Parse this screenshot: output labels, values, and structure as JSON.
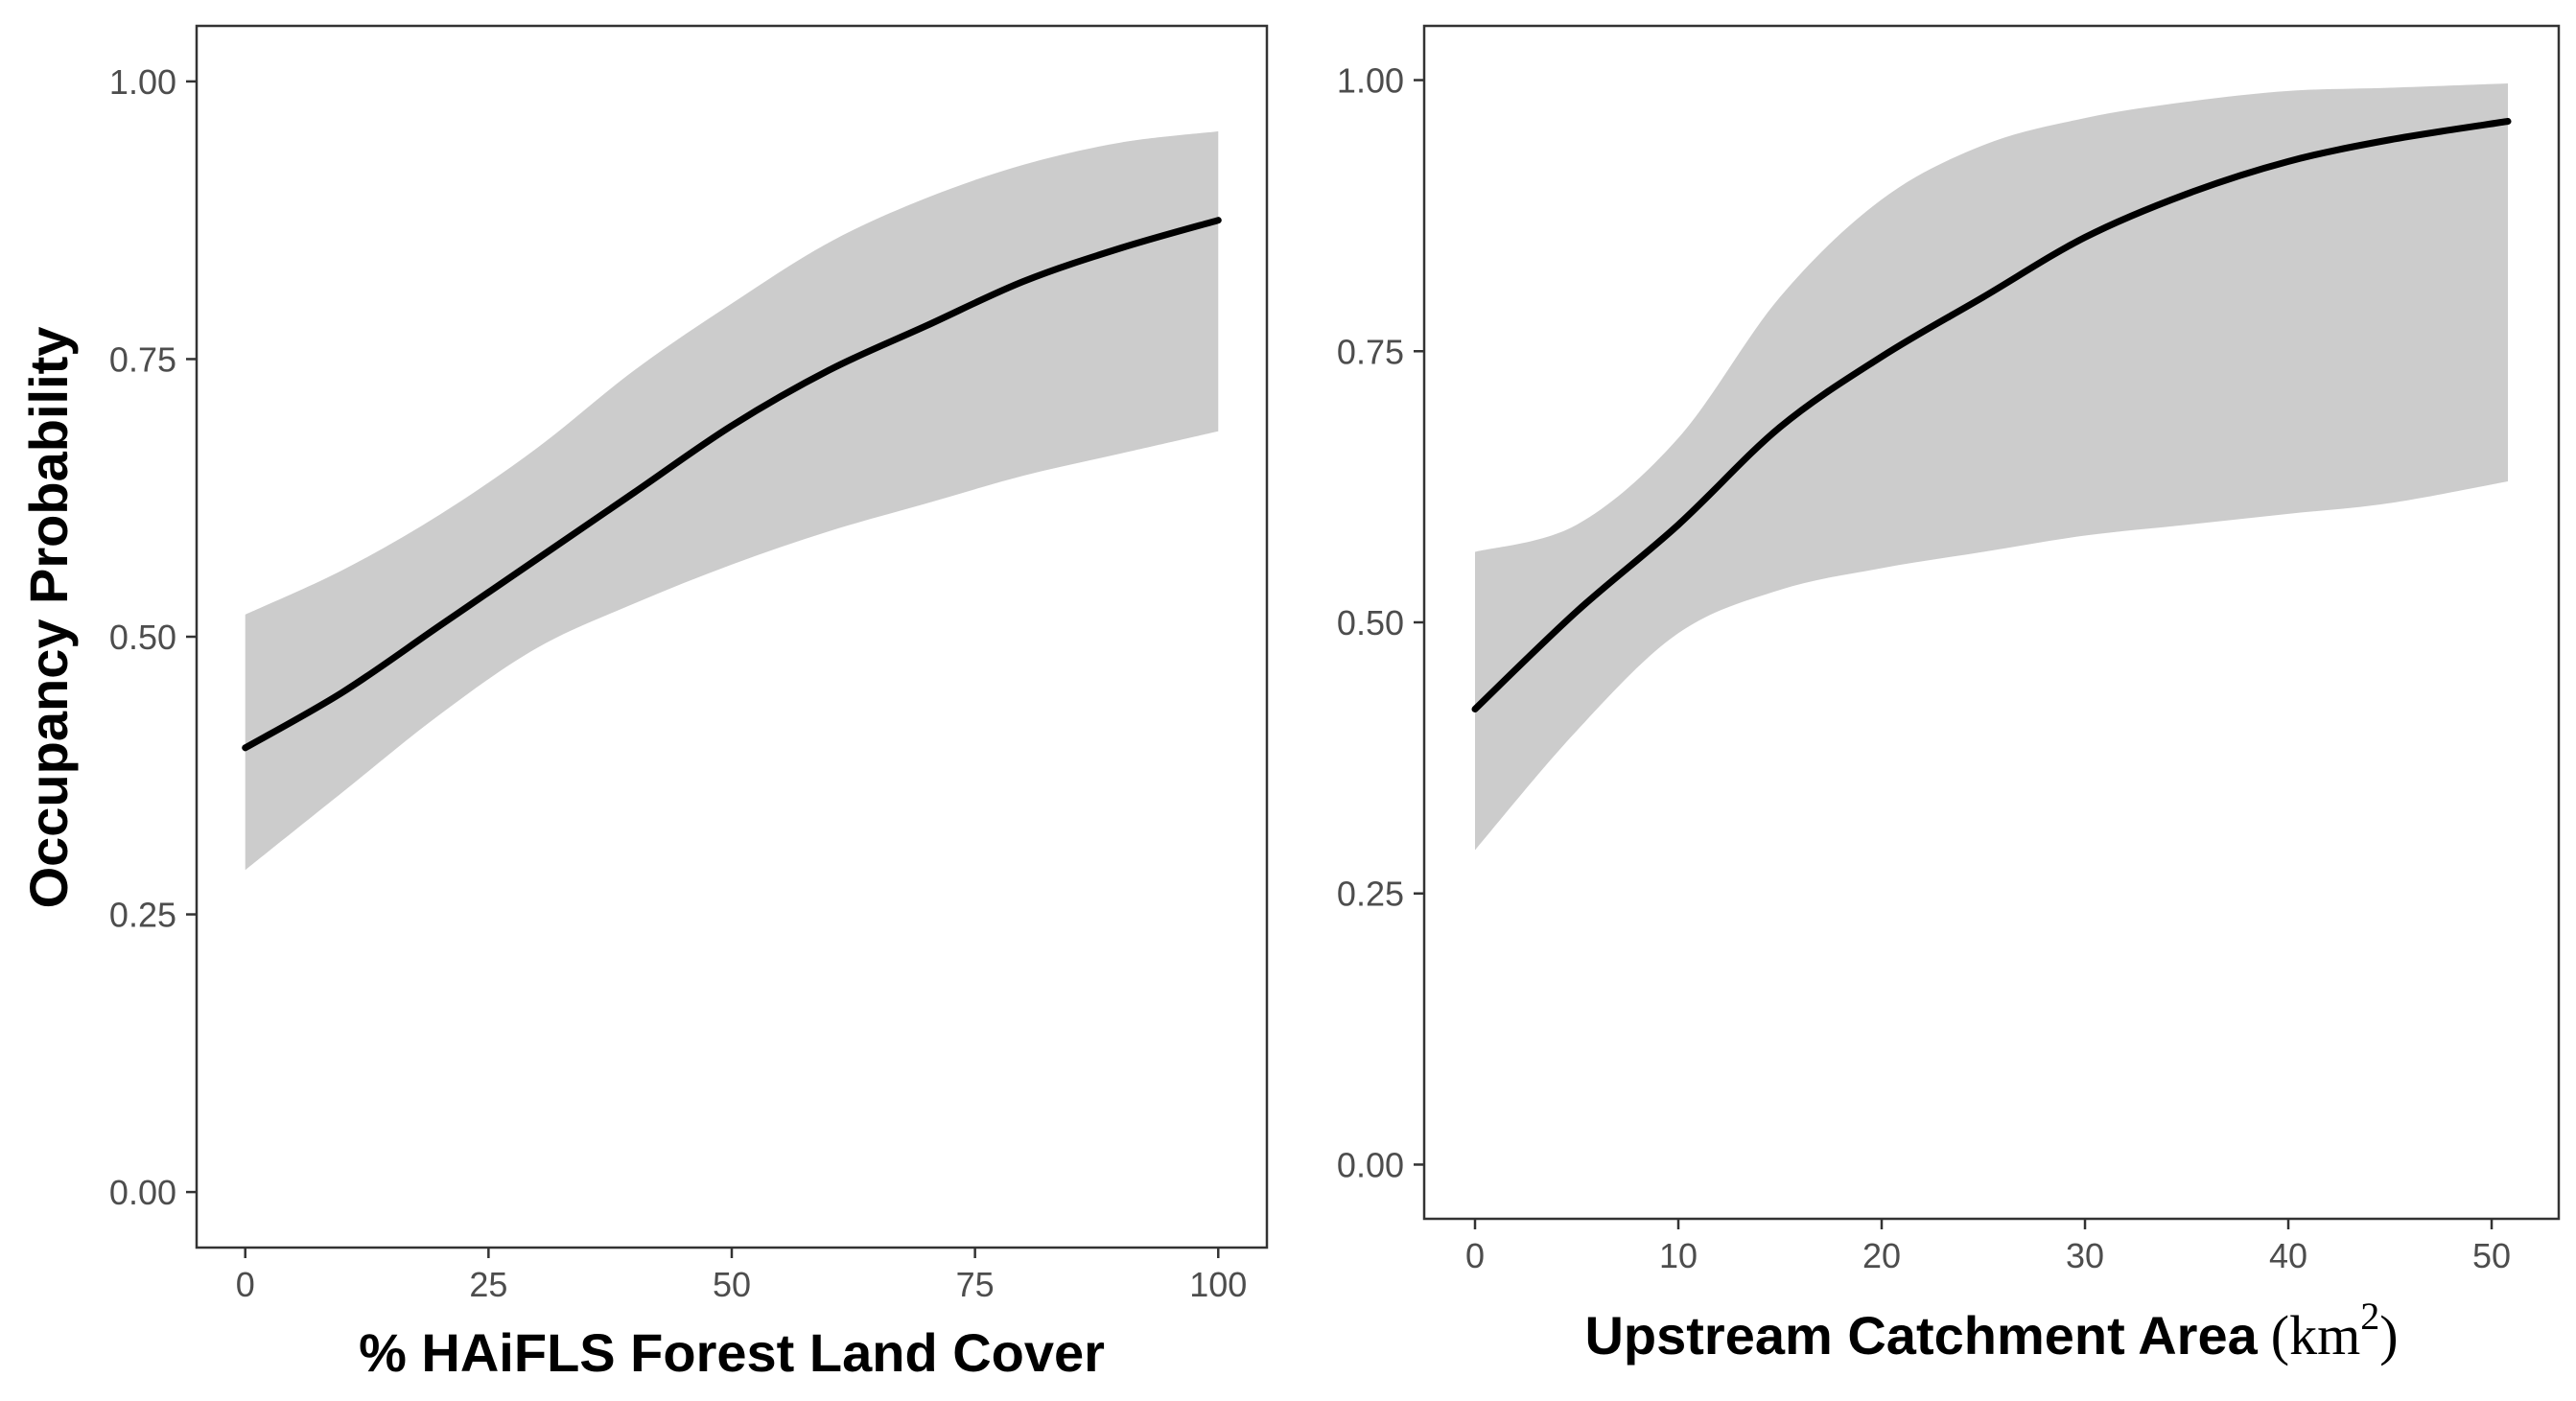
{
  "chart_data": [
    {
      "type": "line",
      "title": "",
      "xlabel": "% HAiFLS Forest Land Cover",
      "ylabel": "Occupancy Probability",
      "xlim": [
        -5,
        105
      ],
      "ylim": [
        -0.05,
        1.05
      ],
      "xticks": [
        0,
        25,
        50,
        75,
        100
      ],
      "xtick_labels": [
        "0",
        "25",
        "50",
        "75",
        "100"
      ],
      "yticks": [
        0,
        0.25,
        0.5,
        0.75,
        1.0
      ],
      "ytick_labels": [
        "0.00",
        "0.25",
        "0.50",
        "0.75",
        "1.00"
      ],
      "grid": false,
      "colors": {
        "line": "#000000",
        "ribbon": "#cccccc",
        "frame": "#333333"
      },
      "series": [
        {
          "x": [
            0,
            10,
            20,
            30,
            40,
            50,
            60,
            70,
            80,
            90,
            100
          ],
          "values": [
            0.4,
            0.45,
            0.51,
            0.57,
            0.63,
            0.69,
            0.74,
            0.78,
            0.82,
            0.85,
            0.875
          ],
          "lower": [
            0.29,
            0.36,
            0.43,
            0.49,
            0.53,
            0.565,
            0.595,
            0.62,
            0.645,
            0.665,
            0.685
          ],
          "upper": [
            0.52,
            0.56,
            0.61,
            0.67,
            0.74,
            0.8,
            0.855,
            0.895,
            0.925,
            0.945,
            0.955
          ]
        }
      ]
    },
    {
      "type": "line",
      "title": "",
      "xlabel": "Upstream Catchment Area",
      "xlabel_unit": "(km",
      "xlabel_unit_sup": "2",
      "xlabel_unit_close": ")",
      "ylabel": "",
      "xlim": [
        -2.5,
        53.3
      ],
      "ylim": [
        -0.05,
        1.05
      ],
      "xticks": [
        0,
        10,
        20,
        30,
        40,
        50
      ],
      "xtick_labels": [
        "0",
        "10",
        "20",
        "30",
        "40",
        "50"
      ],
      "yticks": [
        0,
        0.25,
        0.5,
        0.75,
        1.0
      ],
      "ytick_labels": [
        "0.00",
        "0.25",
        "0.50",
        "0.75",
        "1.00"
      ],
      "grid": false,
      "colors": {
        "line": "#000000",
        "ribbon": "#cccccc",
        "frame": "#333333"
      },
      "series": [
        {
          "x": [
            0,
            5,
            10,
            15,
            20,
            25,
            30,
            35,
            40,
            45,
            50.8
          ],
          "values": [
            0.42,
            0.51,
            0.59,
            0.68,
            0.745,
            0.8,
            0.855,
            0.895,
            0.925,
            0.945,
            0.962
          ],
          "lower": [
            0.29,
            0.4,
            0.49,
            0.53,
            0.55,
            0.565,
            0.58,
            0.59,
            0.6,
            0.61,
            0.63
          ],
          "upper": [
            0.565,
            0.59,
            0.67,
            0.8,
            0.89,
            0.94,
            0.965,
            0.98,
            0.99,
            0.993,
            0.997
          ]
        }
      ]
    }
  ]
}
